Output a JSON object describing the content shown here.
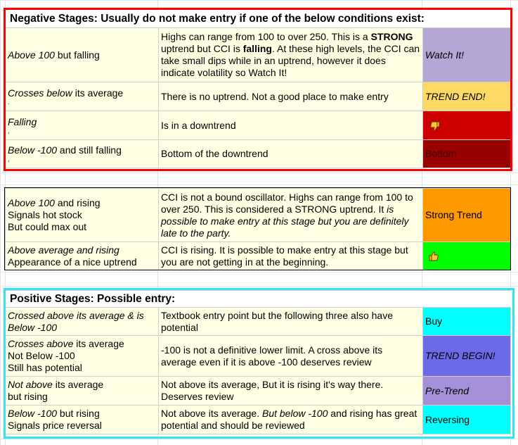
{
  "negative": {
    "heading": "Negative Stages: Usually do not make entry if one of the below conditions exist:",
    "rows": [
      {
        "condition": [
          {
            "t": "Above 100",
            "i": true
          },
          {
            "t": " but falling"
          }
        ],
        "description": [
          {
            "t": "Highs can range from 100 to over 250.  This is a "
          },
          {
            "t": "STRONG",
            "b": true
          },
          {
            "t": " uptrend but CCI is "
          },
          {
            "t": "falling",
            "b": true
          },
          {
            "t": ".  At these high levels, the CCI can take small dips while in an uptrend, however it does indicate volatility so Watch It!"
          }
        ],
        "status": "Watch It!",
        "status_italic": true,
        "status_color": "#b4a7d6",
        "status_text_color": "#000000",
        "icon": ""
      },
      {
        "condition": [
          {
            "t": "Crosses below",
            "i": true
          },
          {
            "t": " its average"
          }
        ],
        "mark": ".",
        "description": [
          {
            "t": "There is no uptrend.  Not a good place to make entry"
          }
        ],
        "status": "TREND END!",
        "status_italic": true,
        "status_color": "#ffd966",
        "status_text_color": "#000000",
        "icon": ""
      },
      {
        "condition": [
          {
            "t": "Falling",
            "i": true
          }
        ],
        "mark": ",",
        "description": [
          {
            "t": "Is in a downtrend"
          }
        ],
        "status": "",
        "status_italic": false,
        "status_color": "#cc0000",
        "status_text_color": "#000000",
        "icon": "thumbs-down-icon"
      },
      {
        "condition": [
          {
            "t": "Below -100",
            "i": true
          },
          {
            "t": " and still falling"
          }
        ],
        "mark": ",",
        "description": [
          {
            "t": "Bottom of the downtrend"
          }
        ],
        "status": "Bottom",
        "status_italic": false,
        "status_color": "#990000",
        "status_text_color": "#3a0000",
        "icon": ""
      }
    ]
  },
  "middle": {
    "rows": [
      {
        "condition_lines": [
          [
            {
              "t": "Above 100",
              "i": true
            },
            {
              "t": " and rising"
            }
          ],
          [
            {
              "t": "Signals hot stock"
            }
          ],
          [
            {
              "t": "But could max out"
            }
          ]
        ],
        "description": [
          {
            "t": "CCI is not a bound oscillator. Highs can range from 100 to over 250.  This is considered a STRONG uptrend.  It "
          },
          {
            "t": "is possible to make entry at this stage but you are definitely late to the party.",
            "i": true
          }
        ],
        "status": "Strong Trend",
        "status_italic": false,
        "status_color": "#ff9900",
        "status_text_color": "#000000",
        "icon": ""
      },
      {
        "condition_lines": [
          [
            {
              "t": "Above average and rising",
              "i": true
            }
          ],
          [
            {
              "t": "Appearance of a nice uptrend"
            }
          ]
        ],
        "description": [
          {
            "t": "CCI is rising.  It is possible to make entry at this stage but you are not getting in at the beginning."
          }
        ],
        "status": "",
        "status_italic": false,
        "status_color": "#00ff00",
        "status_text_color": "#000000",
        "icon": "thumbs-up-icon"
      }
    ]
  },
  "positive": {
    "heading": "Positive Stages: Possible entry:",
    "rows": [
      {
        "condition_lines": [
          [
            {
              "t": "Crossed above its average & is Below -100",
              "i": true
            }
          ]
        ],
        "description": [
          {
            "t": "Textbook entry point but the following three also have potential"
          }
        ],
        "status": "Buy",
        "status_italic": false,
        "status_color": "#00ffff",
        "status_text_color": "#000000",
        "icon": ""
      },
      {
        "condition_lines": [
          [
            {
              "t": "Crosses above",
              "i": true
            },
            {
              "t": " its average"
            }
          ],
          [
            {
              "t": "Not Below -100"
            }
          ],
          [
            {
              "t": "Still has potential"
            }
          ]
        ],
        "description": [
          {
            "t": "-100 is not a definitive lower limit.  A cross above its average even if it is above -100 deserves review"
          }
        ],
        "status": "TREND BEGIN!",
        "status_italic": true,
        "status_color": "#6d6ae8",
        "status_text_color": "#000000",
        "icon": ""
      },
      {
        "condition_lines": [
          [
            {
              "t": "Not above",
              "i": true
            },
            {
              "t": " its average"
            }
          ],
          [
            {
              "t": "but rising"
            }
          ]
        ],
        "description": [
          {
            "t": "Not above its average, But it is rising it's way there.  Deserves review"
          }
        ],
        "status": "Pre-Trend",
        "status_italic": true,
        "status_color": "#a48fd9",
        "status_text_color": "#000000",
        "icon": ""
      },
      {
        "condition_lines": [
          [
            {
              "t": "Below -100",
              "i": true
            },
            {
              "t": " but rising"
            }
          ],
          [
            {
              "t": "Signals price reversal"
            }
          ]
        ],
        "description": [
          {
            "t": "Not above its average. "
          },
          {
            "t": "But below -100",
            "i": true
          },
          {
            "t": "  and rising has great potential and should be reviewed"
          }
        ],
        "status": "Reversing",
        "status_italic": false,
        "status_color": "#00ffff",
        "status_text_color": "#000000",
        "icon": ""
      }
    ]
  },
  "colors": {
    "negative_frame": "#ff0000",
    "middle_frame": "#000000",
    "positive_frame": "#33e5f0",
    "cell_bg": "#ffffe3"
  }
}
